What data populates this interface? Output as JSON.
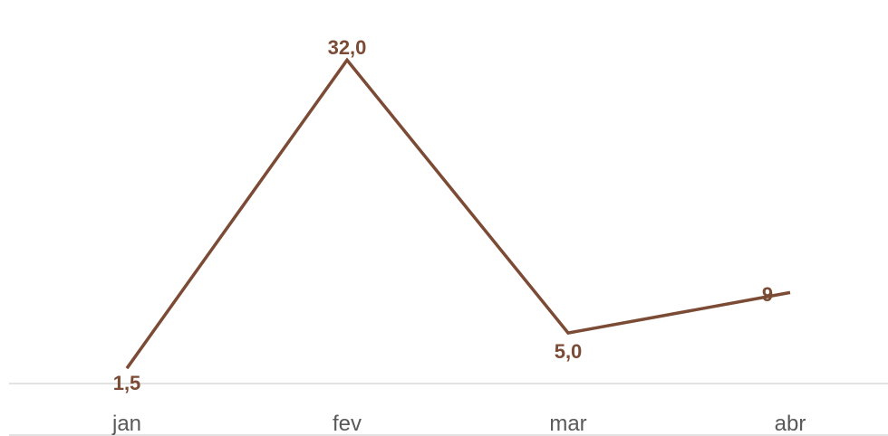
{
  "chart_data": {
    "type": "line",
    "categories": [
      "jan",
      "fev",
      "mar",
      "abr"
    ],
    "series": [
      {
        "values": [
          1.5,
          32.0,
          5.0,
          9
        ],
        "data_labels": [
          "1,5",
          "32,0",
          "5,0",
          "9"
        ]
      }
    ],
    "title": "",
    "xlabel": "",
    "ylabel": "",
    "ylim": [
      0,
      34
    ],
    "grid": false,
    "legend": "none",
    "colors": {
      "line": "#7b4b35",
      "data_label": "#7b4b35",
      "axis": "#d9d9d9",
      "tick_label": "#595959"
    }
  }
}
